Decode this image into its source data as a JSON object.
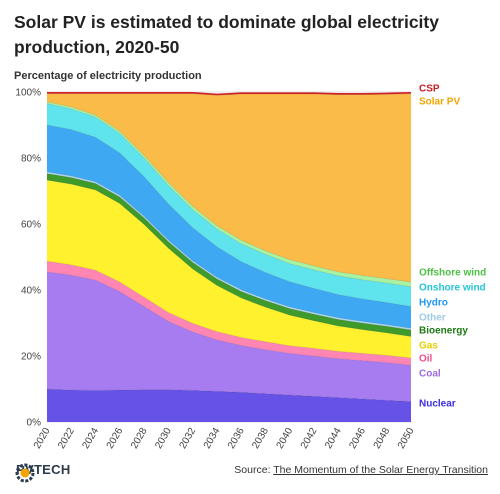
{
  "title": "Solar PV is estimated to dominate global electricity production, 2020-50",
  "chart_data": {
    "type": "area",
    "stacked": true,
    "title": "Solar PV is estimated to dominate global electricity production, 2020-50",
    "ylabel": "Percentage of electricity production",
    "xlabel": "",
    "ylim": [
      0,
      100
    ],
    "y_ticks": [
      "0%",
      "20%",
      "40%",
      "60%",
      "80%",
      "100%"
    ],
    "x": [
      2020,
      2022,
      2024,
      2026,
      2028,
      2030,
      2032,
      2034,
      2036,
      2038,
      2040,
      2042,
      2044,
      2046,
      2048,
      2050
    ],
    "x_ticks": [
      "2020",
      "2022",
      "2024",
      "2026",
      "2028",
      "2030",
      "2032",
      "2034",
      "2036",
      "2038",
      "2040",
      "2042",
      "2044",
      "2046",
      "2048",
      "2050"
    ],
    "legend_placement": "right, labels at series ends",
    "series": [
      {
        "name": "Nuclear",
        "color": "#6652e6",
        "values": [
          10,
          9.7,
          9.6,
          9.7,
          9.8,
          9.8,
          9.6,
          9.3,
          9.0,
          8.6,
          8.2,
          7.8,
          7.4,
          7.0,
          6.6,
          6.2
        ]
      },
      {
        "name": "Coal",
        "color": "#a77cf0",
        "values": [
          35.5,
          34.8,
          33.4,
          29.8,
          25.2,
          20.7,
          17.7,
          15.6,
          14.2,
          13.3,
          12.6,
          12.2,
          11.8,
          11.6,
          11.4,
          11.0
        ]
      },
      {
        "name": "Oil",
        "color": "#ff85b3",
        "values": [
          3.2,
          3.1,
          3.0,
          2.9,
          2.8,
          2.7,
          2.6,
          2.5,
          2.4,
          2.4,
          2.3,
          2.3,
          2.2,
          2.2,
          2.2,
          2.2
        ]
      },
      {
        "name": "Gas",
        "color": "#fff12e",
        "values": [
          24.6,
          24.5,
          24.3,
          23.8,
          22.1,
          19.5,
          16.5,
          14.0,
          12.0,
          10.5,
          9.3,
          8.4,
          7.7,
          7.2,
          6.8,
          6.5
        ]
      },
      {
        "name": "Bioenergy",
        "color": "#3f9a2c",
        "values": [
          2.0,
          2.0,
          2.0,
          2.0,
          2.0,
          2.0,
          2.0,
          2.0,
          2.0,
          2.0,
          2.0,
          2.0,
          2.0,
          2.0,
          2.0,
          2.0
        ]
      },
      {
        "name": "Other",
        "color": "#aed9f2",
        "values": [
          0.5,
          0.5,
          0.5,
          0.5,
          0.5,
          0.5,
          0.5,
          0.5,
          0.5,
          0.5,
          0.5,
          0.5,
          0.5,
          0.5,
          0.5,
          0.5
        ]
      },
      {
        "name": "Hydro",
        "color": "#3ea8f2",
        "values": [
          14.2,
          14.0,
          13.5,
          12.8,
          11.9,
          10.9,
          10.0,
          9.2,
          8.5,
          8.0,
          7.6,
          7.3,
          7.0,
          6.8,
          6.7,
          6.6
        ]
      },
      {
        "name": "Onshore wind",
        "color": "#5fe3ec",
        "values": [
          6.5,
          6.3,
          6.1,
          5.9,
          5.7,
          5.6,
          5.5,
          5.4,
          5.4,
          5.5,
          5.5,
          5.6,
          5.7,
          5.8,
          5.9,
          6.0
        ]
      },
      {
        "name": "Offshore wind",
        "color": "#a8f3a2",
        "values": [
          0.5,
          0.6,
          0.6,
          0.7,
          0.8,
          0.9,
          1.0,
          1.0,
          1.1,
          1.1,
          1.2,
          1.2,
          1.2,
          1.3,
          1.3,
          1.4
        ]
      },
      {
        "name": "Solar PV",
        "color": "#fbbb48",
        "values": [
          2.5,
          4.0,
          6.5,
          11.4,
          18.7,
          26.9,
          34.1,
          39.5,
          44.3,
          47.5,
          50.2,
          52.1,
          53.7,
          54.8,
          55.9,
          57.1
        ]
      },
      {
        "name": "CSP",
        "color": "#d21f26",
        "values": [
          0.5,
          0.5,
          0.5,
          0.5,
          0.5,
          0.5,
          0.5,
          0.5,
          0.5,
          0.5,
          0.5,
          0.5,
          0.5,
          0.5,
          0.5,
          0.5
        ]
      }
    ]
  },
  "legend_colors": {
    "CSP": "#c81e24",
    "Solar PV": "#f4a300",
    "Offshore wind": "#4cc443",
    "Onshore wind": "#24c6d8",
    "Hydro": "#2196f0",
    "Other": "#9fcbe8",
    "Bioenergy": "#1b7a12",
    "Gas": "#e6cf00",
    "Oil": "#f24d8c",
    "Coal": "#9d6ae6",
    "Nuclear": "#3b2de0"
  },
  "footer": {
    "brand": "PVTECH",
    "logo_icon": "gear-globe-icon",
    "source_prefix": "Source: ",
    "source_link": "The Momentum of the Solar Energy Transition"
  }
}
